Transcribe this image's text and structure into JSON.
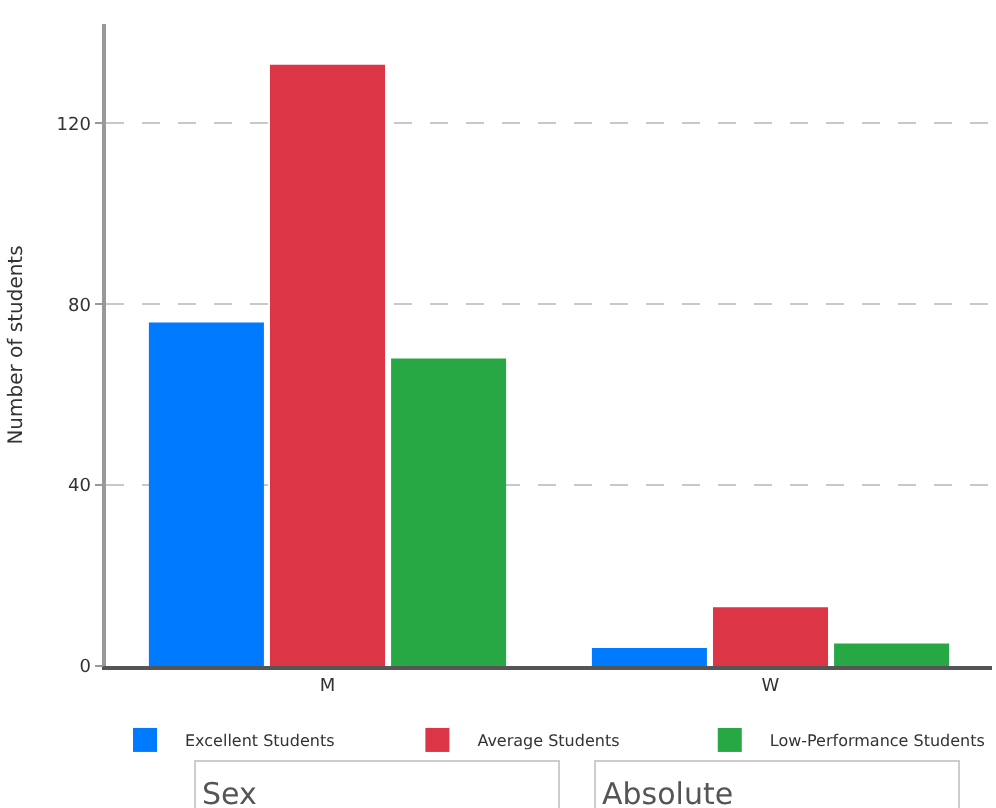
{
  "chart_data": {
    "type": "bar",
    "ylabel": "Number of students",
    "categories": [
      "M",
      "W"
    ],
    "series": [
      {
        "name": "Excellent Students",
        "color": "#007bff",
        "values": [
          76,
          4
        ]
      },
      {
        "name": "Average Students",
        "color": "#dc3545",
        "values": [
          133,
          13
        ]
      },
      {
        "name": "Low-Performance Students",
        "color": "#28a745",
        "values": [
          68,
          5
        ]
      }
    ],
    "ylim": [
      0,
      142
    ],
    "yticks": [
      0,
      40,
      80,
      120
    ],
    "grid": "y",
    "legend": "bottom",
    "annotations": [
      "Sex",
      "Absolute"
    ]
  }
}
